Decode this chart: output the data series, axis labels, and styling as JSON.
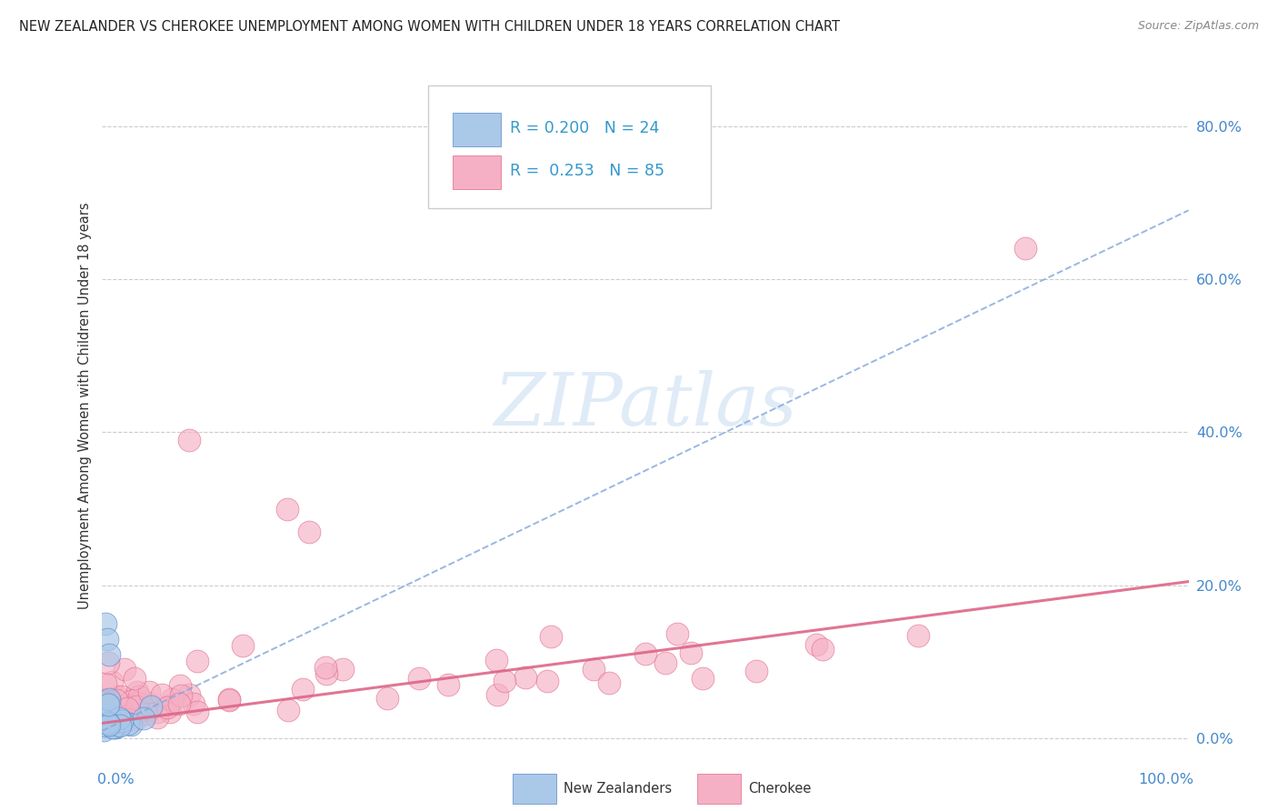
{
  "title": "NEW ZEALANDER VS CHEROKEE UNEMPLOYMENT AMONG WOMEN WITH CHILDREN UNDER 18 YEARS CORRELATION CHART",
  "source": "Source: ZipAtlas.com",
  "ylabel": "Unemployment Among Women with Children Under 18 years",
  "xlim": [
    0,
    1.0
  ],
  "ylim": [
    -0.01,
    0.88
  ],
  "yticks_right": [
    0.0,
    0.2,
    0.4,
    0.6,
    0.8
  ],
  "yticklabels_right": [
    "0.0%",
    "20.0%",
    "40.0%",
    "60.0%",
    "80.0%"
  ],
  "xtick_left_label": "0.0%",
  "xtick_right_label": "100.0%",
  "legend_nz_R": "0.200",
  "legend_nz_N": "24",
  "legend_ck_R": "0.253",
  "legend_ck_N": "85",
  "watermark": "ZIPatlas",
  "nz_color": "#aac8e8",
  "nz_edge": "#5588cc",
  "ck_color": "#f5b0c5",
  "ck_edge": "#e06888",
  "nz_trend_color": "#88aadd",
  "ck_trend_color": "#dd6688",
  "background": "#ffffff",
  "grid_color": "#cccccc",
  "title_color": "#222222",
  "ylabel_color": "#333333",
  "tick_color": "#4488cc",
  "legend_color": "#3399cc",
  "nz_trend_slope": 0.68,
  "nz_trend_intercept": 0.01,
  "ck_trend_slope": 0.185,
  "ck_trend_intercept": 0.02,
  "fig_width": 14.06,
  "fig_height": 8.92,
  "dpi": 100
}
